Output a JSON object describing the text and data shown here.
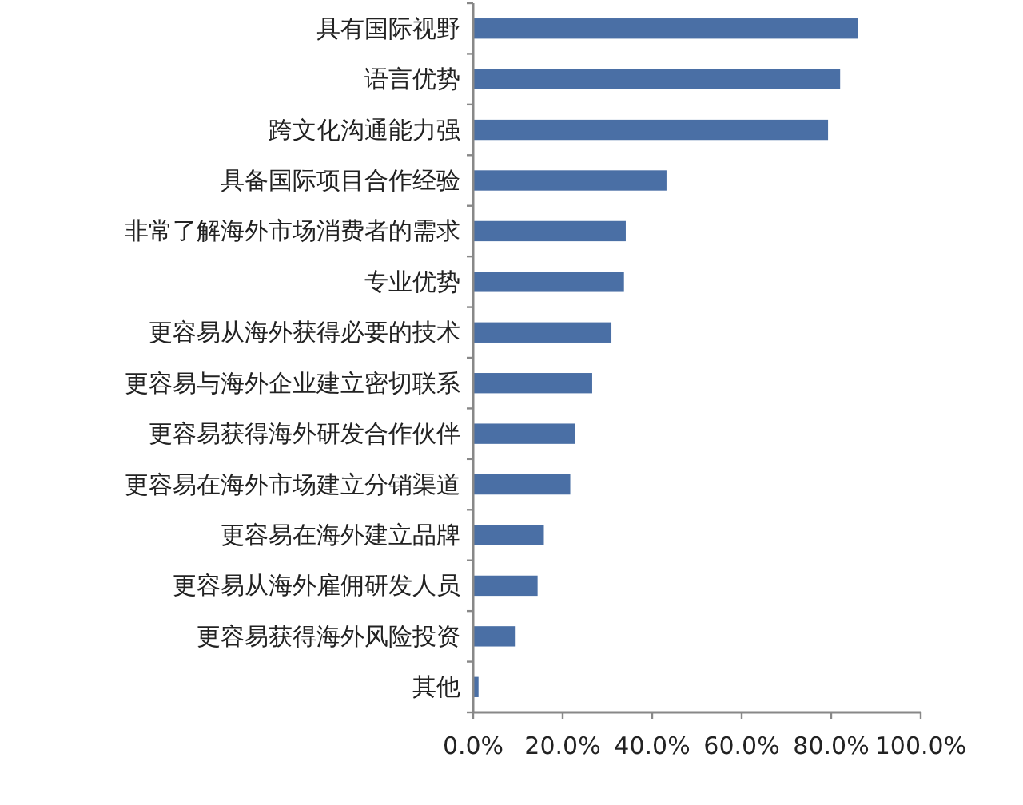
{
  "chart_data": {
    "type": "bar",
    "orientation": "horizontal",
    "categories": [
      "具有国际视野",
      "语言优势",
      "跨文化沟通能力强",
      "具备国际项目合作经验",
      "非常了解海外市场消费者的需求",
      "专业优势",
      "更容易从海外获得必要的技术",
      "更容易与海外企业建立密切联系",
      "更容易获得海外研发合作伙伴",
      "更容易在海外市场建立分销渠道",
      "更容易在海外建立品牌",
      "更容易从海外雇佣研发人员",
      "更容易获得海外风险投资",
      "其他"
    ],
    "values": [
      85.9,
      82.0,
      79.3,
      43.2,
      34.1,
      33.7,
      30.9,
      26.6,
      22.7,
      21.7,
      15.8,
      14.4,
      9.5,
      1.2
    ],
    "color": "#4a6fa5",
    "xlim": [
      0,
      100
    ],
    "xticks": [
      {
        "value": 0,
        "label": "0.0%"
      },
      {
        "value": 20,
        "label": "20.0%"
      },
      {
        "value": 40,
        "label": "40.0%"
      },
      {
        "value": 60,
        "label": "60.0%"
      },
      {
        "value": 80,
        "label": "80.0%"
      },
      {
        "value": 100,
        "label": "100.0%"
      }
    ],
    "grid": false
  }
}
